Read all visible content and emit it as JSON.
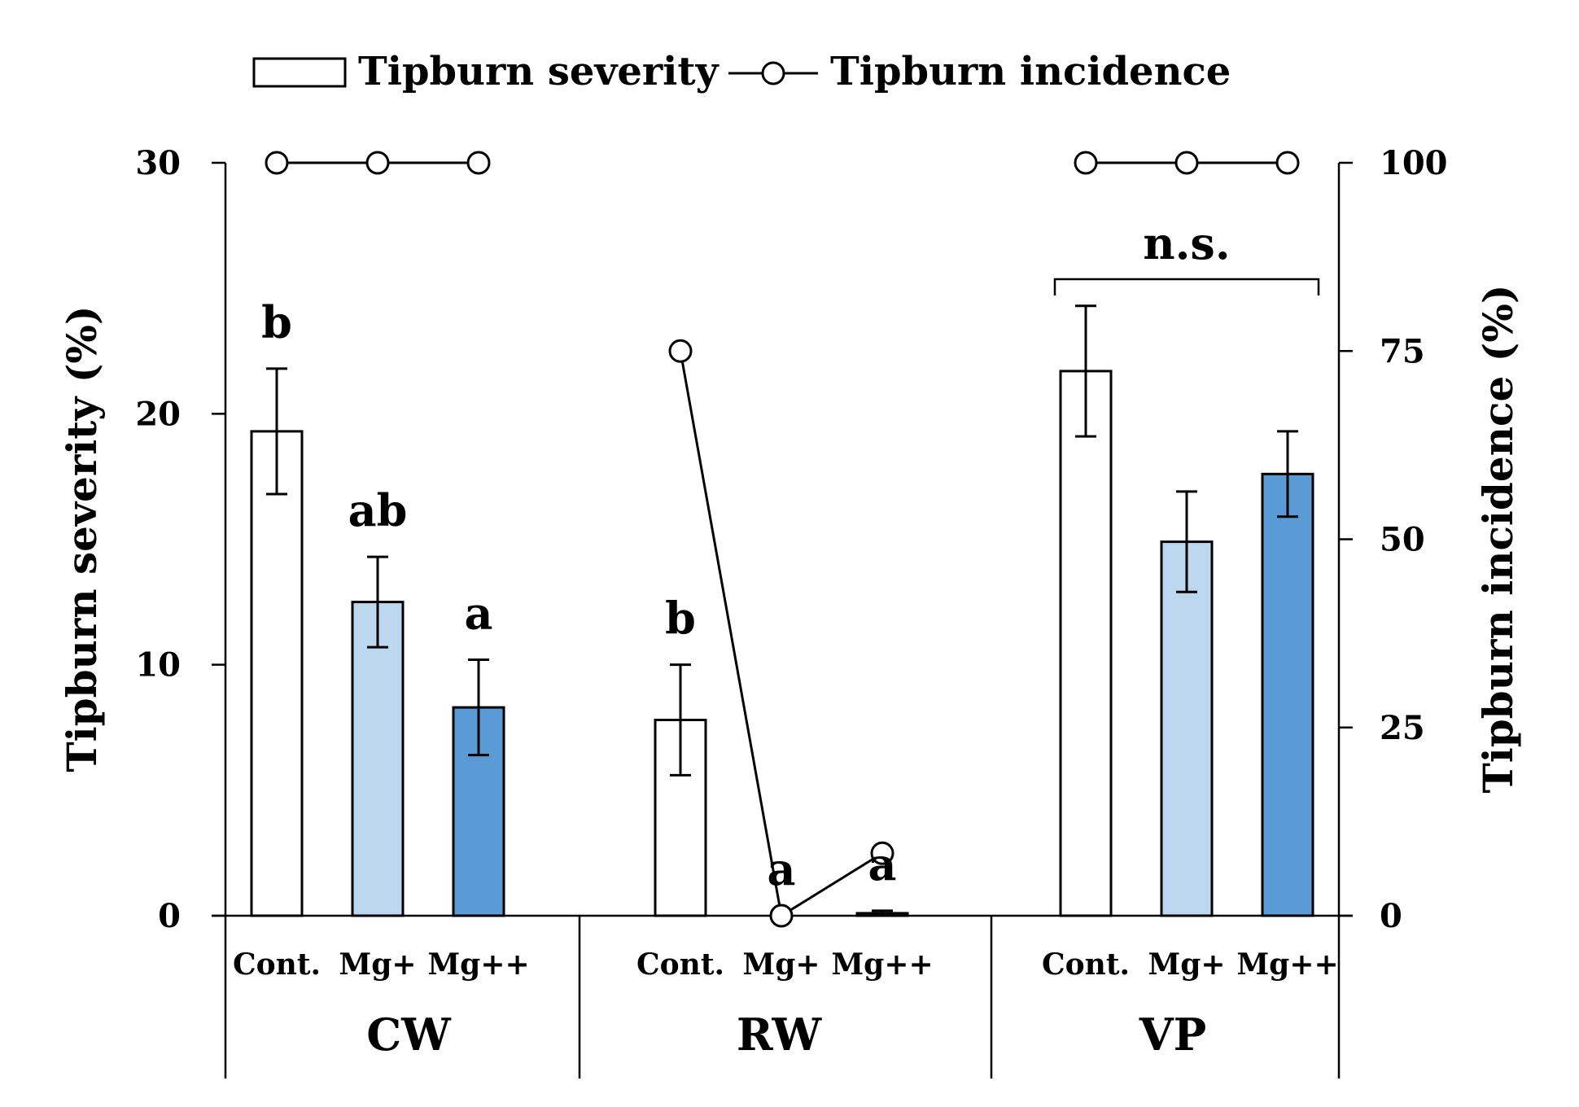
{
  "chart_data": {
    "type": "bar",
    "title": "",
    "legend": {
      "position": "top",
      "bar_label": "Tipburn severity",
      "line_label": "Tipburn incidence"
    },
    "y_left": {
      "label": "Tipburn severity (%)",
      "range": [
        0,
        30
      ],
      "ticks": [
        0,
        10,
        20,
        30
      ]
    },
    "y_right": {
      "label": "Tipburn incidence (%)",
      "range": [
        0,
        100
      ],
      "ticks": [
        0,
        25,
        50,
        75,
        100
      ]
    },
    "groups": [
      {
        "name": "CW",
        "items": [
          {
            "category": "Cont.",
            "severity": 19.3,
            "error": 2.5,
            "incidence": 100,
            "letter": "b",
            "fill": "#ffffff"
          },
          {
            "category": "Mg+",
            "severity": 12.5,
            "error": 1.8,
            "incidence": 100,
            "letter": "ab",
            "fill": "#bdd7ee"
          },
          {
            "category": "Mg++",
            "severity": 8.3,
            "error": 1.9,
            "incidence": 100,
            "letter": "a",
            "fill": "#5b9bd5"
          }
        ]
      },
      {
        "name": "RW",
        "items": [
          {
            "category": "Cont.",
            "severity": 7.8,
            "error": 2.2,
            "incidence": 75,
            "letter": "b",
            "fill": "#ffffff"
          },
          {
            "category": "Mg+",
            "severity": 0,
            "error": 0,
            "incidence": 0,
            "letter": "a",
            "fill": "#bdd7ee"
          },
          {
            "category": "Mg++",
            "severity": 0.1,
            "error": 0.1,
            "incidence": 8.3,
            "letter": "a",
            "fill": "#5b9bd5"
          }
        ]
      },
      {
        "name": "VP",
        "items": [
          {
            "category": "Cont.",
            "severity": 21.7,
            "error": 2.6,
            "incidence": 100,
            "letter": "",
            "fill": "#ffffff"
          },
          {
            "category": "Mg+",
            "severity": 14.9,
            "error": 2.0,
            "incidence": 100,
            "letter": "",
            "fill": "#bdd7ee"
          },
          {
            "category": "Mg++",
            "severity": 17.6,
            "error": 1.7,
            "incidence": 100,
            "letter": "",
            "fill": "#5b9bd5"
          }
        ],
        "group_annotation": "n.s."
      }
    ]
  }
}
